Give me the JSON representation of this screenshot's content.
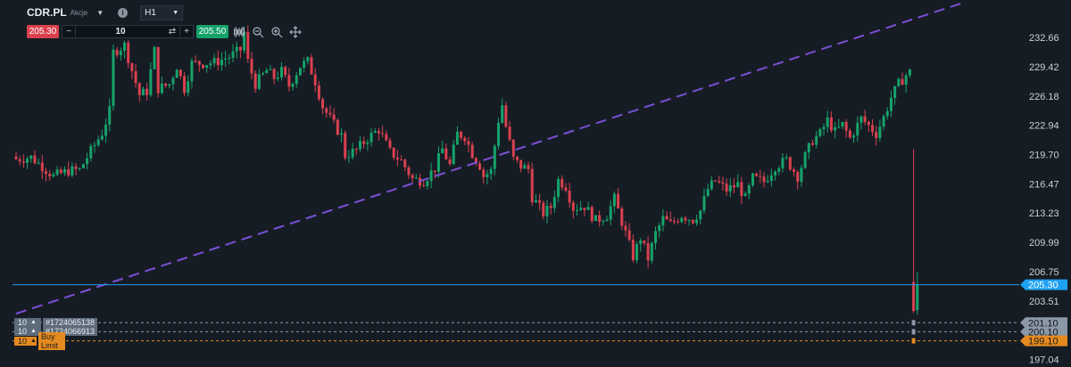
{
  "header": {
    "symbol": "CDR.PL",
    "symbol_type": "Akcje",
    "timeframe": "H1"
  },
  "order_ticket": {
    "sell_price": "205.30",
    "quantity": "10",
    "buy_price": "205.50"
  },
  "chart_data": {
    "type": "candlestick",
    "y_axis_ticks": [
      {
        "value": 232.66,
        "label": "232.66"
      },
      {
        "value": 229.42,
        "label": "229.42"
      },
      {
        "value": 226.18,
        "label": "226.18"
      },
      {
        "value": 222.94,
        "label": "222.94"
      },
      {
        "value": 219.7,
        "label": "219.70"
      },
      {
        "value": 216.47,
        "label": "216.47"
      },
      {
        "value": 213.23,
        "label": "213.23"
      },
      {
        "value": 209.99,
        "label": "209.99"
      },
      {
        "value": 206.75,
        "label": "206.75"
      },
      {
        "value": 203.51,
        "label": "203.51"
      },
      {
        "value": 197.04,
        "label": "197.04"
      }
    ],
    "ylim": [
      196.2,
      236.8
    ],
    "price_line": {
      "value": 205.3,
      "label": "205.30",
      "color": "#1da1f2"
    },
    "order_lines": [
      {
        "value": 201.1,
        "label": "201.10",
        "color": "#8b98a8",
        "quantity": "10",
        "id": "#1724065138",
        "kind": "pending"
      },
      {
        "value": 200.1,
        "label": "200.10",
        "color": "#8b98a8",
        "quantity": "10",
        "id": "#1724066913",
        "kind": "pending"
      },
      {
        "value": 199.1,
        "label": "199.10",
        "color": "#e58a1f",
        "quantity": "10",
        "id": "Buy Limit",
        "kind": "limit"
      }
    ],
    "trendline": {
      "start": [
        0,
        202.1
      ],
      "end": [
        254,
        236.6
      ],
      "color": "#7b4fd6"
    },
    "candle_colors": {
      "up": "#16a36a",
      "down": "#d9414f"
    },
    "anchors": [
      [
        0,
        219.2
      ],
      [
        4,
        219.4
      ],
      [
        7,
        218.4
      ],
      [
        10,
        217.3
      ],
      [
        14,
        217.9
      ],
      [
        17,
        218.0
      ],
      [
        20,
        220.1
      ],
      [
        23,
        222.1
      ],
      [
        25,
        224.5
      ],
      [
        26,
        231.0
      ],
      [
        29,
        231.8
      ],
      [
        31,
        229.0
      ],
      [
        33,
        226.3
      ],
      [
        35,
        226.7
      ],
      [
        37,
        231.2
      ],
      [
        38,
        227.0
      ],
      [
        41,
        227.5
      ],
      [
        43,
        229.5
      ],
      [
        45,
        227.0
      ],
      [
        47,
        229.8
      ],
      [
        50,
        229.8
      ],
      [
        53,
        229.9
      ],
      [
        57,
        230.5
      ],
      [
        60,
        231.3
      ],
      [
        61,
        233.2
      ],
      [
        62,
        230.0
      ],
      [
        64,
        227.5
      ],
      [
        67,
        229.0
      ],
      [
        69,
        228.2
      ],
      [
        71,
        228.9
      ],
      [
        73,
        227.3
      ],
      [
        76,
        229.5
      ],
      [
        78,
        230.0
      ],
      [
        80,
        227.8
      ],
      [
        82,
        225.0
      ],
      [
        85,
        223.0
      ],
      [
        87,
        221.8
      ],
      [
        88,
        219.6
      ],
      [
        91,
        220.2
      ],
      [
        94,
        221.5
      ],
      [
        97,
        222.5
      ],
      [
        100,
        220.0
      ],
      [
        103,
        219.0
      ],
      [
        106,
        217.0
      ],
      [
        109,
        216.8
      ],
      [
        112,
        218.2
      ],
      [
        114,
        220.3
      ],
      [
        116,
        218.5
      ],
      [
        118,
        222.0
      ],
      [
        120,
        221.7
      ],
      [
        122,
        219.8
      ],
      [
        124,
        218.5
      ],
      [
        125,
        217.3
      ],
      [
        127,
        217.9
      ],
      [
        129,
        223.5
      ],
      [
        130,
        225.2
      ],
      [
        131,
        222.8
      ],
      [
        133,
        219.2
      ],
      [
        135,
        218.4
      ],
      [
        137,
        218.1
      ],
      [
        138,
        215.0
      ],
      [
        141,
        213.2
      ],
      [
        143,
        213.9
      ],
      [
        145,
        216.9
      ],
      [
        147,
        216.2
      ],
      [
        149,
        213.8
      ],
      [
        152,
        214.0
      ],
      [
        155,
        212.4
      ],
      [
        158,
        213.0
      ],
      [
        160,
        214.8
      ],
      [
        163,
        211.0
      ],
      [
        165,
        208.4
      ],
      [
        167,
        210.5
      ],
      [
        169,
        208.2
      ],
      [
        171,
        211.0
      ],
      [
        173,
        212.6
      ],
      [
        175,
        212.0
      ],
      [
        178,
        213.0
      ],
      [
        181,
        212.5
      ],
      [
        183,
        213.5
      ],
      [
        185,
        215.9
      ],
      [
        187,
        216.8
      ],
      [
        190,
        215.8
      ],
      [
        193,
        216.4
      ],
      [
        195,
        214.8
      ],
      [
        197,
        217.1
      ],
      [
        200,
        216.7
      ],
      [
        203,
        218.4
      ],
      [
        206,
        219.1
      ],
      [
        209,
        217.3
      ],
      [
        211,
        219.5
      ],
      [
        213,
        221.3
      ],
      [
        215,
        222.0
      ],
      [
        217,
        223.5
      ],
      [
        219,
        222.2
      ],
      [
        221,
        223.0
      ],
      [
        223,
        221.5
      ],
      [
        226,
        223.7
      ],
      [
        228,
        222.9
      ],
      [
        230,
        222.0
      ],
      [
        232,
        223.8
      ],
      [
        234,
        226.0
      ],
      [
        236,
        227.5
      ],
      [
        238,
        228.5
      ],
      [
        239,
        228.8
      ]
    ],
    "spike_candles": [
      {
        "i": 240,
        "o": 205.6,
        "h": 220.3,
        "l": 202.2,
        "c": 202.4
      },
      {
        "i": 241,
        "o": 202.5,
        "h": 206.7,
        "l": 202.0,
        "c": 205.3
      }
    ]
  }
}
